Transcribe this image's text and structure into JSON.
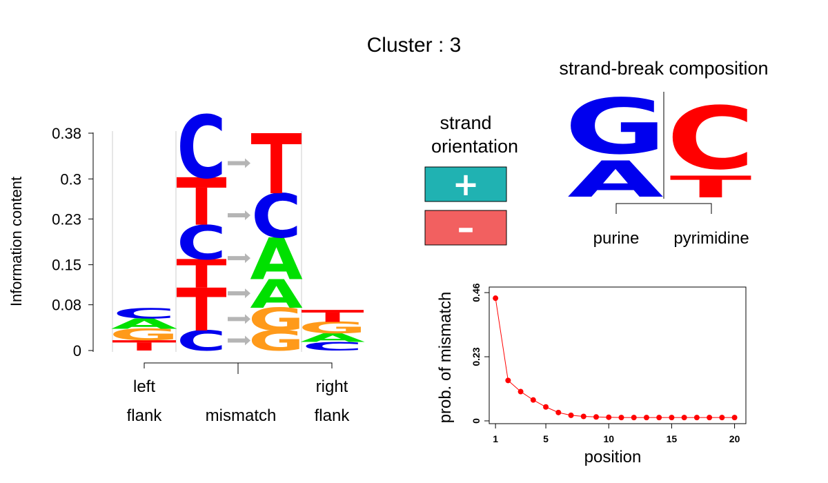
{
  "title": "Cluster : 3",
  "colors": {
    "A": "#00e000",
    "C": "#0000ee",
    "G": "#ff9a1a",
    "T": "#ff0000",
    "arrow": "#b5b5b5",
    "plus_box": "#20b2b2",
    "minus_box": "#f26060",
    "mismatch_curve": "#ff0000"
  },
  "logo": {
    "ylabel": "Information content",
    "ytick_labels": [
      "0.38",
      "0.3",
      "0.23",
      "0.15",
      "0.08",
      "0"
    ],
    "group_labels": {
      "left_line1": "left",
      "left_line2": "flank",
      "mismatch": "mismatch",
      "right_line1": "right",
      "right_line2": "flank"
    }
  },
  "strand": {
    "title_line1": "strand",
    "title_line2": "orientation",
    "plus_symbol": "+",
    "minus_symbol": "–"
  },
  "strand_break": {
    "title": "strand-break composition",
    "purine_letters": [
      "G",
      "A"
    ],
    "pyrimidine_letters": [
      "C",
      "T"
    ],
    "purine_label": "purine",
    "pyrimidine_label": "pyrimidine"
  },
  "chart_data": [
    {
      "type": "sequence_logo",
      "ylabel": "Information content",
      "ylim": [
        0,
        0.38
      ],
      "yticks": [
        0,
        0.08,
        0.15,
        0.23,
        0.3,
        0.38
      ],
      "columns": [
        {
          "group": "left flank",
          "stack": [
            {
              "letter": "T",
              "value": 0.018
            },
            {
              "letter": "G",
              "value": 0.02
            },
            {
              "letter": "A",
              "value": 0.018
            },
            {
              "letter": "C",
              "value": 0.018
            }
          ]
        },
        {
          "group": "mismatch (from)",
          "stack": [
            {
              "letter": "C",
              "value": 0.035
            },
            {
              "letter": "T",
              "value": 0.075
            },
            {
              "letter": "T",
              "value": 0.05
            },
            {
              "letter": "C",
              "value": 0.06
            },
            {
              "letter": "T",
              "value": 0.083
            },
            {
              "letter": "C",
              "value": 0.11
            }
          ]
        },
        {
          "group": "mismatch (to)",
          "stack": [
            {
              "letter": "G",
              "value": 0.035
            },
            {
              "letter": "G",
              "value": 0.04
            },
            {
              "letter": "A",
              "value": 0.05
            },
            {
              "letter": "A",
              "value": 0.073
            },
            {
              "letter": "C",
              "value": 0.077
            },
            {
              "letter": "T",
              "value": 0.105
            }
          ]
        },
        {
          "group": "right flank",
          "stack": [
            {
              "letter": "C",
              "value": 0.015
            },
            {
              "letter": "A",
              "value": 0.015
            },
            {
              "letter": "G",
              "value": 0.02
            },
            {
              "letter": "T",
              "value": 0.021
            }
          ]
        }
      ],
      "x_groups": [
        "left flank",
        "mismatch",
        "right flank"
      ]
    },
    {
      "type": "line",
      "xlabel": "position",
      "ylabel": "prob. of mismatch",
      "xlim": [
        0.5,
        20.9
      ],
      "ylim": [
        -0.01,
        0.48
      ],
      "xticks": [
        1,
        5,
        10,
        15,
        20
      ],
      "yticks": [
        0,
        0.23,
        0.46
      ],
      "x": [
        1,
        2,
        3,
        4,
        5,
        6,
        7,
        8,
        9,
        10,
        11,
        12,
        13,
        14,
        15,
        16,
        17,
        18,
        19,
        20
      ],
      "values": [
        0.44,
        0.145,
        0.105,
        0.075,
        0.05,
        0.03,
        0.02,
        0.016,
        0.014,
        0.013,
        0.012,
        0.012,
        0.012,
        0.012,
        0.012,
        0.012,
        0.012,
        0.012,
        0.012,
        0.012
      ]
    }
  ]
}
